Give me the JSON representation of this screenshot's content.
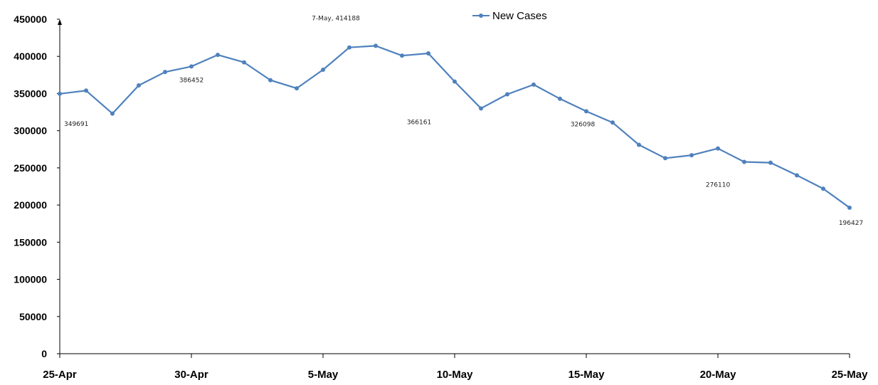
{
  "chart_data": {
    "type": "line",
    "title": "",
    "xlabel": "",
    "ylabel": "",
    "ylim": [
      0,
      450000
    ],
    "y_ticks": [
      0,
      50000,
      100000,
      150000,
      200000,
      250000,
      300000,
      350000,
      400000,
      450000
    ],
    "y_tick_labels": [
      "0",
      "50000",
      "100000",
      "150000",
      "200000",
      "250000",
      "300000",
      "350000",
      "400000",
      "450000"
    ],
    "x_tick_labels": [
      "25-Apr",
      "30-Apr",
      "5-May",
      "10-May",
      "15-May",
      "20-May",
      "25-May"
    ],
    "x": [
      "25-Apr",
      "26-Apr",
      "27-Apr",
      "28-Apr",
      "29-Apr",
      "30-Apr",
      "1-May",
      "2-May",
      "3-May",
      "4-May",
      "5-May",
      "6-May",
      "7-May",
      "8-May",
      "9-May",
      "10-May",
      "11-May",
      "12-May",
      "13-May",
      "14-May",
      "15-May",
      "16-May",
      "17-May",
      "18-May",
      "19-May",
      "20-May",
      "21-May",
      "22-May",
      "23-May",
      "24-May",
      "25-May"
    ],
    "grid": false,
    "legend": {
      "position": "top-center"
    },
    "series": [
      {
        "name": "New Cases",
        "color": "#4f81bd",
        "values": [
          349691,
          354000,
          323000,
          361000,
          379000,
          386452,
          402000,
          392000,
          368000,
          357000,
          382000,
          412000,
          414188,
          401000,
          404000,
          366161,
          330000,
          349000,
          362000,
          343000,
          326098,
          311000,
          281000,
          263000,
          267000,
          276110,
          258000,
          257000,
          240000,
          222000,
          196427
        ]
      }
    ],
    "data_labels": [
      {
        "index": 0,
        "text": "349691"
      },
      {
        "index": 5,
        "text": "386452"
      },
      {
        "index": 12,
        "text": "7-May, 414188"
      },
      {
        "index": 15,
        "text": "366161"
      },
      {
        "index": 20,
        "text": "326098"
      },
      {
        "index": 25,
        "text": "276110"
      },
      {
        "index": 30,
        "text": "196427"
      }
    ]
  }
}
